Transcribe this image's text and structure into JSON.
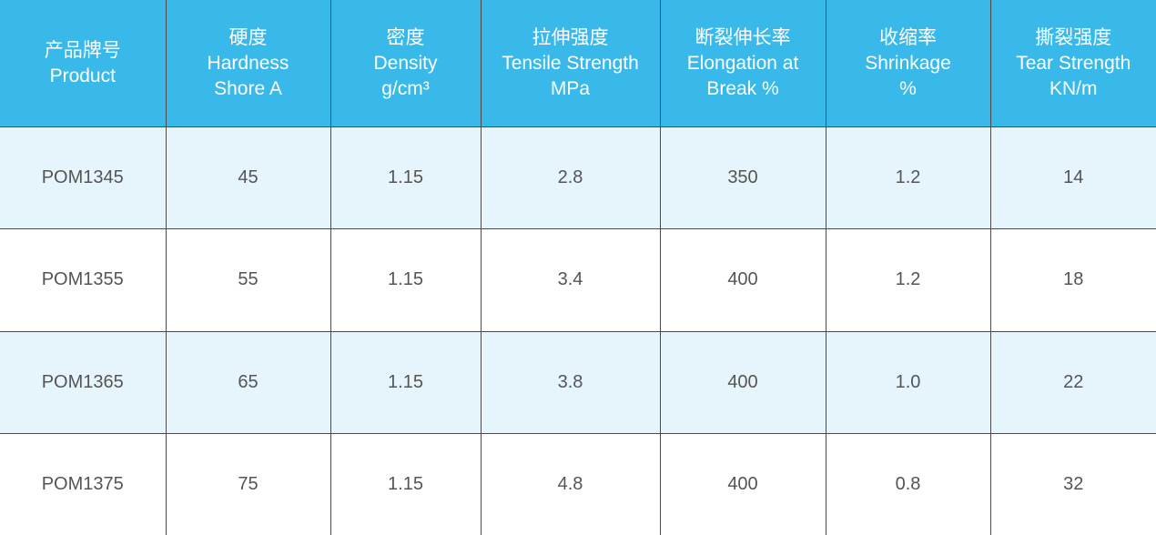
{
  "table": {
    "header": [
      [
        "产品牌号",
        "Product"
      ],
      [
        "硬度",
        "Hardness",
        "Shore A"
      ],
      [
        "密度",
        "Density",
        "g/cm³"
      ],
      [
        "拉伸强度",
        "Tensile Strength",
        "MPa"
      ],
      [
        "断裂伸长率",
        "Elongation at",
        "Break %"
      ],
      [
        "收缩率",
        "Shrinkage",
        "%"
      ],
      [
        "撕裂强度",
        "Tear Strength",
        "KN/m"
      ]
    ],
    "rows": [
      [
        "POM1345",
        "45",
        "1.15",
        "2.8",
        "350",
        "1.2",
        "14"
      ],
      [
        "POM1355",
        "55",
        "1.15",
        "3.4",
        "400",
        "1.2",
        "18"
      ],
      [
        "POM1365",
        "65",
        "1.15",
        "3.8",
        "400",
        "1.0",
        "22"
      ],
      [
        "POM1375",
        "75",
        "1.15",
        "4.8",
        "400",
        "0.8",
        "32"
      ]
    ]
  }
}
